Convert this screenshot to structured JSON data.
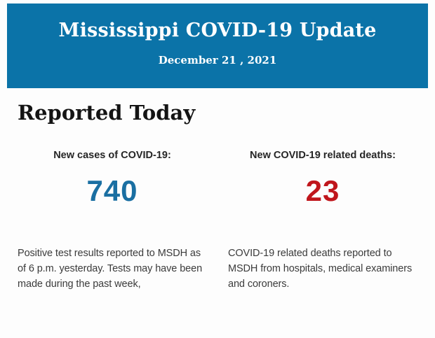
{
  "header": {
    "title": "Mississippi COVID-19 Update",
    "date": "December 21 , 2021",
    "background_color": "#0b73a8",
    "text_color": "#ffffff"
  },
  "main": {
    "section_title": "Reported Today",
    "stats": [
      {
        "label": "New cases of COVID-19:",
        "value": "740",
        "value_color": "#1a6fa2",
        "description": "Positive test results reported to MSDH as of 6 p.m. yesterday. Tests may have been made during the past week,"
      },
      {
        "label": "New COVID-19 related deaths:",
        "value": "23",
        "value_color": "#c0161c",
        "description": "COVID-19 related deaths reported to MSDH from hospitals, medical examiners and coroners."
      }
    ]
  }
}
